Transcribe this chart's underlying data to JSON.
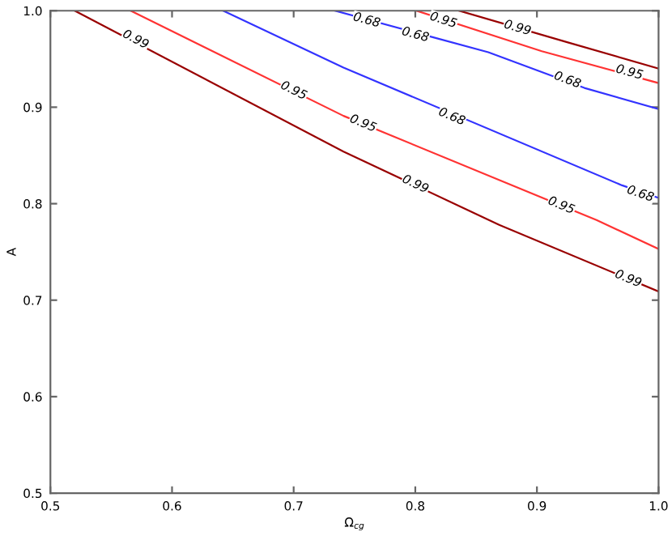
{
  "chart_data": {
    "type": "line",
    "xlabel": "Ω$_{cg}$",
    "ylabel": "A",
    "xlim": [
      0.5,
      1.0
    ],
    "ylim": [
      0.5,
      1.0
    ],
    "xticks": [
      0.5,
      0.6,
      0.7,
      0.8,
      0.9,
      {
        "value": 1.0,
        "label": "1.0"
      }
    ],
    "yticks": [
      0.5,
      0.6,
      0.7,
      0.8,
      0.9,
      {
        "value": 1.0,
        "label": "1.0"
      }
    ],
    "grid": false,
    "legend": false,
    "marker": "none",
    "line_style": "solid",
    "series": [
      {
        "color": "#990000",
        "x": [
          0.52,
          0.741,
          0.869,
          1.0
        ],
        "values": [
          1.0,
          0.854,
          0.778,
          0.709
        ]
      },
      {
        "color": "#ff3333",
        "x": [
          0.566,
          0.741,
          0.949,
          1.0
        ],
        "values": [
          1.0,
          0.891,
          0.783,
          0.753
        ]
      },
      {
        "color": "#3333ff",
        "x": [
          0.642,
          0.741,
          0.97,
          1.0
        ],
        "values": [
          1.0,
          0.941,
          0.819,
          0.806
        ]
      },
      {
        "color": "#3333ff",
        "x": [
          0.734,
          0.86,
          0.939,
          1.0
        ],
        "values": [
          1.0,
          0.957,
          0.92,
          0.898
        ]
      },
      {
        "color": "#ff3333",
        "x": [
          0.801,
          0.904,
          1.0
        ],
        "values": [
          1.0,
          0.958,
          0.925
        ]
      },
      {
        "color": "#990000",
        "x": [
          0.836,
          0.926,
          1.0
        ],
        "values": [
          1.0,
          0.967,
          0.94
        ]
      }
    ],
    "annotations": [
      {
        "text": "0.99",
        "x": 0.57,
        "y": 0.97
      },
      {
        "text": "0.99",
        "x": 0.8,
        "y": 0.82
      },
      {
        "text": "0.99",
        "x": 0.975,
        "y": 0.722
      },
      {
        "text": "0.95",
        "x": 0.7,
        "y": 0.917
      },
      {
        "text": "0.95",
        "x": 0.757,
        "y": 0.883
      },
      {
        "text": "0.95",
        "x": 0.92,
        "y": 0.798
      },
      {
        "text": "0.68",
        "x": 0.8,
        "y": 0.975
      },
      {
        "text": "0.68",
        "x": 0.83,
        "y": 0.89
      },
      {
        "text": "0.68",
        "x": 0.985,
        "y": 0.81
      },
      {
        "text": "0.68",
        "x": 0.76,
        "y": 0.99
      },
      {
        "text": "0.68",
        "x": 0.925,
        "y": 0.928
      },
      {
        "text": "0.95",
        "x": 0.823,
        "y": 0.99
      },
      {
        "text": "0.95",
        "x": 0.976,
        "y": 0.936
      },
      {
        "text": "0.99",
        "x": 0.884,
        "y": 0.982
      }
    ]
  }
}
